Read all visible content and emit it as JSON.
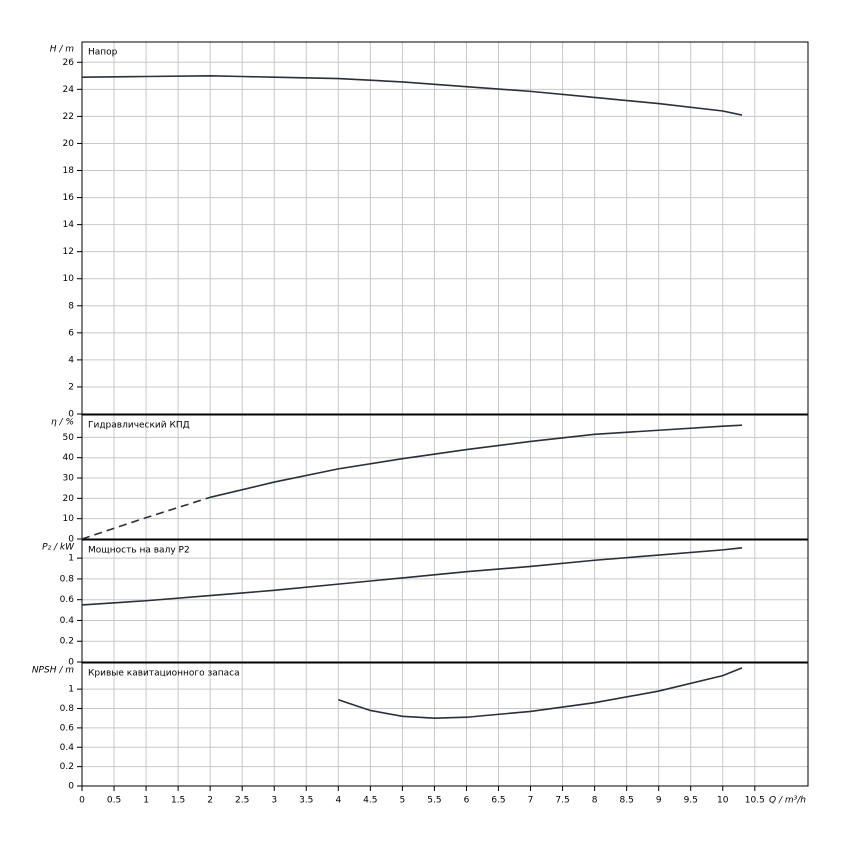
{
  "chart_data": [
    {
      "type": "line",
      "title": "Напор",
      "ylabel": "H / m",
      "x": [
        0,
        1,
        2,
        2.5,
        3,
        4,
        5,
        6,
        7,
        8,
        9,
        10,
        10.3
      ],
      "series": [
        {
          "color": "#2b2f3a",
          "values": [
            24.9,
            24.95,
            25,
            24.95,
            24.9,
            24.8,
            24.55,
            24.2,
            23.85,
            23.4,
            22.95,
            22.4,
            22.1
          ]
        }
      ],
      "xlim": [
        0,
        11.33
      ],
      "xticks": [
        0,
        0.5,
        1,
        1.5,
        2,
        2.5,
        3,
        3.5,
        4,
        4.5,
        5,
        5.5,
        6,
        6.5,
        7,
        7.5,
        8,
        8.5,
        9,
        9.5,
        10,
        10.5
      ],
      "ylim": [
        0,
        27.5
      ],
      "yticks": [
        0,
        2,
        4,
        6,
        8,
        10,
        12,
        14,
        16,
        18,
        20,
        22,
        24,
        26
      ],
      "grid": true
    },
    {
      "type": "line",
      "title": "Гидравлический КПД",
      "ylabel": "η / %",
      "x": [
        0,
        1,
        2,
        3,
        4,
        5,
        6,
        7,
        8,
        9,
        10,
        10.3
      ],
      "series": [
        {
          "color": "#2b2f3a",
          "dashed": true,
          "values": [
            0,
            10.5,
            20.5,
            null,
            null,
            null,
            null,
            null,
            null,
            null,
            null,
            null
          ]
        },
        {
          "color": "#2b2f3a",
          "values": [
            null,
            null,
            20.5,
            28,
            34.5,
            39.5,
            44,
            48,
            51.5,
            53.5,
            55.5,
            56
          ]
        }
      ],
      "xlim": [
        0,
        11.33
      ],
      "xticks": [
        0,
        0.5,
        1,
        1.5,
        2,
        2.5,
        3,
        3.5,
        4,
        4.5,
        5,
        5.5,
        6,
        6.5,
        7,
        7.5,
        8,
        8.5,
        9,
        9.5,
        10,
        10.5
      ],
      "ylim": [
        0,
        61
      ],
      "yticks": [
        0,
        10,
        20,
        30,
        40,
        50
      ],
      "grid": true
    },
    {
      "type": "line",
      "title": "Мощность на валу P2",
      "ylabel": "P₂ / kW",
      "x": [
        0,
        1,
        2,
        3,
        4,
        5,
        6,
        7,
        8,
        9,
        10,
        10.3
      ],
      "series": [
        {
          "color": "#2b2f3a",
          "values": [
            0.55,
            0.59,
            0.64,
            0.69,
            0.75,
            0.81,
            0.87,
            0.92,
            0.98,
            1.03,
            1.08,
            1.1
          ]
        }
      ],
      "xlim": [
        0,
        11.33
      ],
      "xticks": [
        0,
        0.5,
        1,
        1.5,
        2,
        2.5,
        3,
        3.5,
        4,
        4.5,
        5,
        5.5,
        6,
        6.5,
        7,
        7.5,
        8,
        8.5,
        9,
        9.5,
        10,
        10.5
      ],
      "ylim": [
        0,
        1.175
      ],
      "yticks": [
        0,
        0.2,
        0.4,
        0.6,
        0.8,
        1
      ],
      "grid": true
    },
    {
      "type": "line",
      "title": "Кривые кавитационного запаса",
      "ylabel": "NPSH / m",
      "xlabel": "Q / m³/h",
      "x": [
        4,
        4.5,
        5,
        5.5,
        6,
        7,
        8,
        9,
        10,
        10.3
      ],
      "series": [
        {
          "color": "#2b2f3a",
          "values": [
            0.89,
            0.78,
            0.72,
            0.7,
            0.71,
            0.77,
            0.86,
            0.98,
            1.14,
            1.22
          ]
        }
      ],
      "xlim": [
        0,
        11.33
      ],
      "xticks": [
        0,
        0.5,
        1,
        1.5,
        2,
        2.5,
        3,
        3.5,
        4,
        4.5,
        5,
        5.5,
        6,
        6.5,
        7,
        7.5,
        8,
        8.5,
        9,
        9.5,
        10,
        10.5
      ],
      "ylim": [
        0,
        1.27
      ],
      "yticks": [
        0,
        0.2,
        0.4,
        0.6,
        0.8,
        1
      ],
      "grid": true
    }
  ]
}
